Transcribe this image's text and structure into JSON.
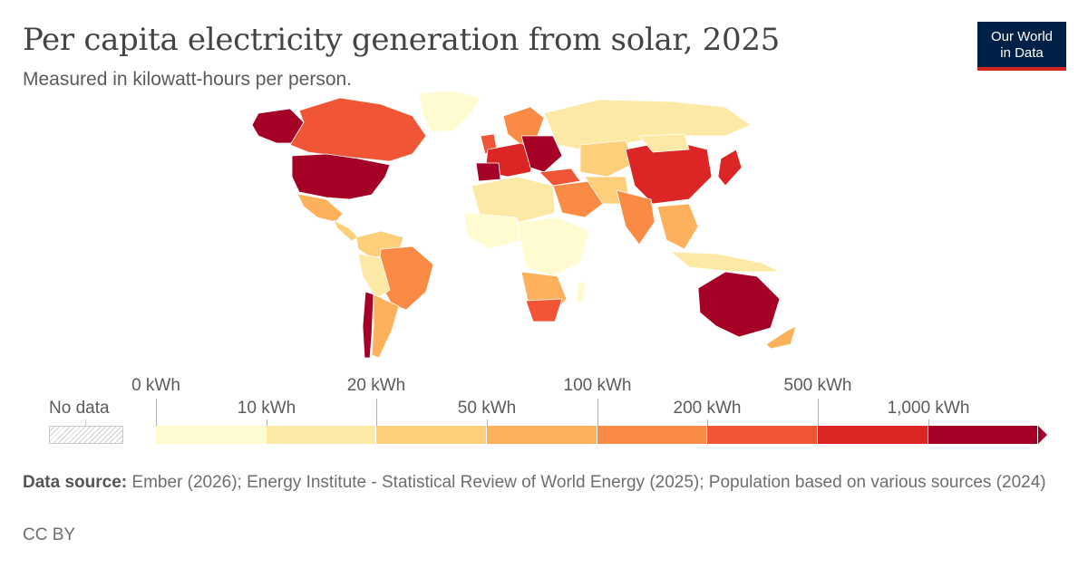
{
  "title": "Per capita electricity generation from solar, 2025",
  "subtitle": "Measured in kilowatt-hours per person.",
  "logo": {
    "line1": "Our World",
    "line2": "in Data"
  },
  "legend": {
    "no_data_label": "No data",
    "bins_colors": [
      "#fefbd0",
      "#fde9a6",
      "#fecf7a",
      "#fdb15c",
      "#f98b45",
      "#f05636",
      "#dc2525",
      "#a50026"
    ],
    "upper_labels": [
      "0 kWh",
      "20 kWh",
      "100 kWh",
      "500 kWh"
    ],
    "lower_labels": [
      "10 kWh",
      "50 kWh",
      "200 kWh",
      "1,000 kWh"
    ]
  },
  "source": {
    "label": "Data source:",
    "text": "Ember (2026); Energy Institute - Statistical Review of World Energy (2025); Population based on various sources (2024)"
  },
  "license": "CC BY",
  "colors": {
    "background": "#ffffff",
    "text": "#5b5b5b",
    "logo_bg": "#002147",
    "logo_accent": "#ce261e"
  }
}
